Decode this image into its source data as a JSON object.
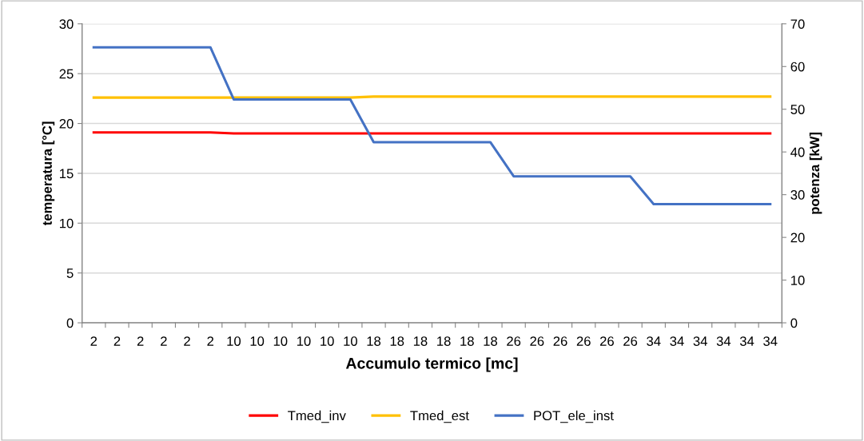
{
  "chart_data": {
    "type": "line",
    "xlabel": "Accumulo termico [mc]",
    "ylabel": "temperatura [°C]",
    "y2label": "potenza [kW]",
    "categories": [
      "2",
      "2",
      "2",
      "2",
      "2",
      "2",
      "10",
      "10",
      "10",
      "10",
      "10",
      "10",
      "18",
      "18",
      "18",
      "18",
      "18",
      "18",
      "26",
      "26",
      "26",
      "26",
      "26",
      "26",
      "34",
      "34",
      "34",
      "34",
      "34",
      "34"
    ],
    "series": [
      {
        "name": "Tmed_inv",
        "color": "#ff0000",
        "values": [
          19.1,
          19.1,
          19.1,
          19.1,
          19.1,
          19.1,
          19.0,
          19.0,
          19.0,
          19.0,
          19.0,
          19.0,
          19.0,
          19.0,
          19.0,
          19.0,
          19.0,
          19.0,
          19.0,
          19.0,
          19.0,
          19.0,
          19.0,
          19.0,
          19.0,
          19.0,
          19.0,
          19.0,
          19.0,
          19.0
        ]
      },
      {
        "name": "Tmed_est",
        "color": "#ffc000",
        "values": [
          22.6,
          22.6,
          22.6,
          22.6,
          22.6,
          22.6,
          22.6,
          22.6,
          22.6,
          22.6,
          22.6,
          22.6,
          22.7,
          22.7,
          22.7,
          22.7,
          22.7,
          22.7,
          22.7,
          22.7,
          22.7,
          22.7,
          22.7,
          22.7,
          22.7,
          22.7,
          22.7,
          22.7,
          22.7,
          22.7
        ]
      },
      {
        "name": "POT_ele_inst",
        "color": "#4472c4",
        "axis": "y2",
        "values": [
          64.5,
          64.5,
          64.5,
          64.5,
          64.5,
          64.5,
          52.3,
          52.3,
          52.3,
          52.3,
          52.3,
          52.3,
          42.3,
          42.3,
          42.3,
          42.3,
          42.3,
          42.3,
          34.3,
          34.3,
          34.3,
          34.3,
          34.3,
          34.3,
          27.8,
          27.8,
          27.8,
          27.8,
          27.8,
          27.8
        ]
      }
    ],
    "ylim": [
      0,
      30
    ],
    "yticks": [
      0,
      5,
      10,
      15,
      20,
      25,
      30
    ],
    "y2lim": [
      0,
      70
    ],
    "y2ticks": [
      0,
      10,
      20,
      30,
      40,
      50,
      60,
      70
    ],
    "grid": "y",
    "legend": "bottom",
    "marker": "none",
    "line_style": "solid"
  }
}
